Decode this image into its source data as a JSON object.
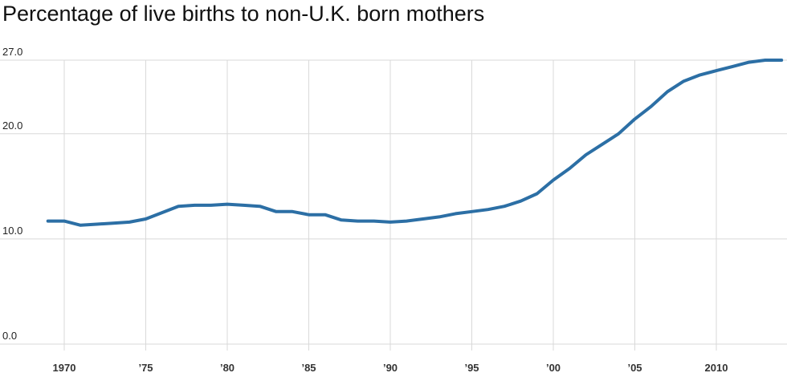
{
  "chart_data": {
    "type": "line",
    "title": "Percentage of live births to non-U.K. born mothers",
    "xlabel": "",
    "ylabel": "",
    "x": [
      1969,
      1970,
      1971,
      1972,
      1973,
      1974,
      1975,
      1976,
      1977,
      1978,
      1979,
      1980,
      1981,
      1982,
      1983,
      1984,
      1985,
      1986,
      1987,
      1988,
      1989,
      1990,
      1991,
      1992,
      1993,
      1994,
      1995,
      1996,
      1997,
      1998,
      1999,
      2000,
      2001,
      2002,
      2003,
      2004,
      2005,
      2006,
      2007,
      2008,
      2009,
      2010,
      2011,
      2012,
      2013,
      2014
    ],
    "series": [
      {
        "values": [
          11.7,
          11.7,
          11.3,
          11.4,
          11.5,
          11.6,
          11.9,
          12.5,
          13.1,
          13.2,
          13.2,
          13.3,
          13.2,
          13.1,
          12.6,
          12.6,
          12.3,
          12.3,
          11.8,
          11.7,
          11.7,
          11.6,
          11.7,
          11.9,
          12.1,
          12.4,
          12.6,
          12.8,
          13.1,
          13.6,
          14.3,
          15.6,
          16.7,
          18.0,
          19.0,
          20.0,
          21.4,
          22.6,
          24.0,
          25.0,
          25.6,
          26.0,
          26.4,
          26.8,
          27.0,
          27.0
        ],
        "color": "#2c6fa5"
      }
    ],
    "ylim": [
      0,
      27
    ],
    "y_ticks": [
      "27.0",
      "20.0",
      "10.0",
      "0.0"
    ],
    "y_tick_values": [
      27,
      20,
      10,
      0
    ],
    "x_ticks": [
      {
        "value": 1970,
        "label": "1970"
      },
      {
        "value": 1975,
        "label": "’75"
      },
      {
        "value": 1980,
        "label": "’80"
      },
      {
        "value": 1985,
        "label": "’85"
      },
      {
        "value": 1990,
        "label": "’90"
      },
      {
        "value": 1995,
        "label": "’95"
      },
      {
        "value": 2000,
        "label": "’00"
      },
      {
        "value": 2005,
        "label": "’05"
      },
      {
        "value": 2010,
        "label": "2010"
      }
    ],
    "grid": true,
    "legend": "none"
  }
}
